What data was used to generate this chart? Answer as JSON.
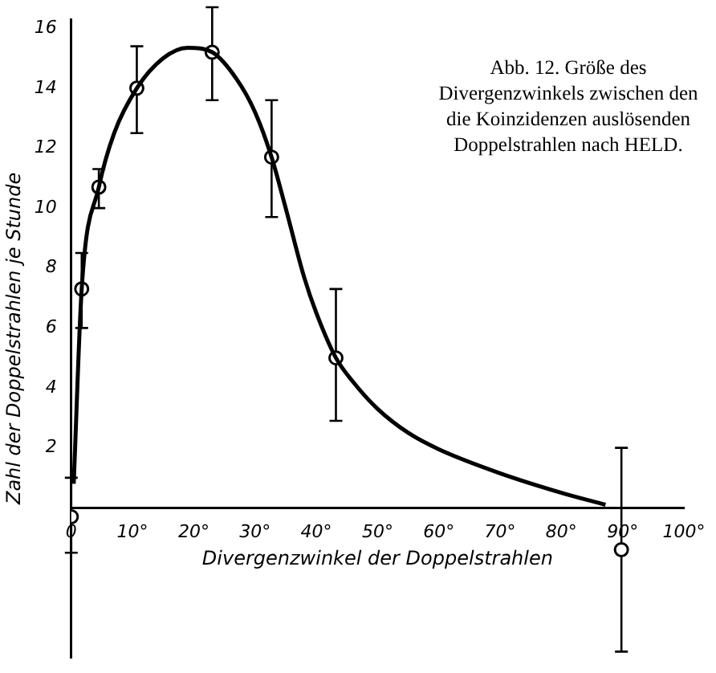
{
  "chart_data": {
    "type": "scatter",
    "xlabel": "Divergenzwinkel der Doppelstrahlen",
    "ylabel": "Zahl der Doppelstrahlen je Stunde",
    "annotations": [
      "Abb. 12. Größe des Divergenzwinkels zwischen den die Koinzidenzen auslösenden Doppelstrahlen nach HELD."
    ],
    "series": [
      {
        "color": "#000000",
        "marker": "circle",
        "x": [
          0,
          1.7,
          4.5,
          10.7,
          23.0,
          32.7,
          43.2,
          89.8
        ],
        "values": [
          -0.3,
          7.3,
          10.7,
          14.0,
          15.2,
          11.7,
          5.0,
          -1.4
        ],
        "errors": [
          [
            -1.5,
            1.0
          ],
          [
            6.0,
            8.5
          ],
          [
            10.0,
            11.3
          ],
          [
            12.5,
            15.4
          ],
          [
            13.6,
            16.7
          ],
          [
            9.7,
            13.6
          ],
          [
            2.9,
            7.3
          ],
          [
            -4.8,
            2.0
          ]
        ]
      },
      {
        "type": "line",
        "color": "#000000",
        "marker": "none",
        "x": [
          0.4,
          1.7,
          4.5,
          7,
          10.7,
          15,
          19,
          23,
          27,
          30,
          32.7,
          35,
          38,
          40,
          43.2,
          46,
          50,
          55,
          60,
          70,
          80,
          87.2
        ],
        "values": [
          0.8,
          7.3,
          10.7,
          12.5,
          14.0,
          15.0,
          15.35,
          15.2,
          14.3,
          13.2,
          11.7,
          10.0,
          7.7,
          6.5,
          5.0,
          4.2,
          3.3,
          2.5,
          1.95,
          1.15,
          0.5,
          0.1
        ]
      }
    ],
    "xlim": [
      0,
      100
    ],
    "xticks": [
      {
        "value": 0,
        "label": "0"
      },
      {
        "value": 10,
        "label": "10°"
      },
      {
        "value": 20,
        "label": "20°"
      },
      {
        "value": 30,
        "label": "30°"
      },
      {
        "value": 40,
        "label": "40°"
      },
      {
        "value": 50,
        "label": "50°"
      },
      {
        "value": 60,
        "label": "60°"
      },
      {
        "value": 70,
        "label": "70°"
      },
      {
        "value": 80,
        "label": "80°"
      },
      {
        "value": 90,
        "label": "90°"
      },
      {
        "value": 100,
        "label": "100°"
      }
    ],
    "ylim": [
      -5,
      16.3
    ],
    "yticks": [
      2,
      4,
      6,
      8,
      10,
      12,
      14,
      16
    ],
    "grid": false,
    "legend": false
  }
}
